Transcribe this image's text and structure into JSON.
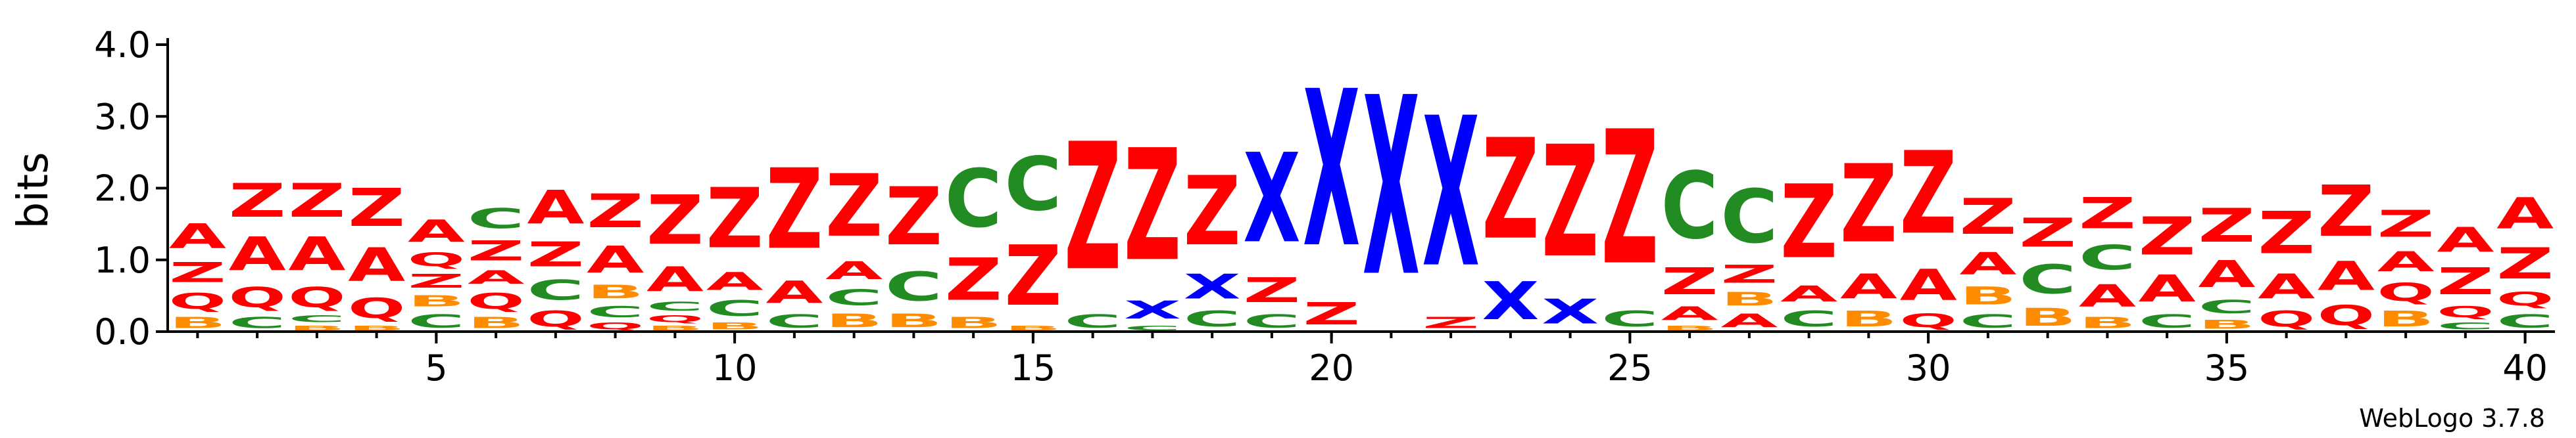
{
  "chart_data": {
    "type": "sequence-logo",
    "ylabel": "bits",
    "ylim": [
      0,
      4.0
    ],
    "yticks": [
      "0.0",
      "1.0",
      "2.0",
      "3.0",
      "4.0"
    ],
    "xlim": [
      1,
      40
    ],
    "xticks": [
      5,
      10,
      15,
      20,
      25,
      30,
      35,
      40
    ],
    "credit": "WebLogo 3.7.8",
    "colors": {
      "A": "#ff0000",
      "Z": "#ff0000",
      "Q": "#ff0000",
      "C": "#228b22",
      "B": "#ff8c00",
      "X": "#0000ff"
    },
    "positions": [
      {
        "pos": 1,
        "stack": [
          [
            "B",
            0.25
          ],
          [
            "Q",
            0.35
          ],
          [
            "Z",
            0.45
          ],
          [
            "A",
            0.55
          ]
        ]
      },
      {
        "pos": 2,
        "stack": [
          [
            "C",
            0.25
          ],
          [
            "Q",
            0.45
          ],
          [
            "A",
            0.75
          ],
          [
            "Z",
            0.75
          ]
        ]
      },
      {
        "pos": 3,
        "stack": [
          [
            "B",
            0.1
          ],
          [
            "C",
            0.15
          ],
          [
            "Q",
            0.45
          ],
          [
            "A",
            0.75
          ],
          [
            "Z",
            0.75
          ]
        ]
      },
      {
        "pos": 4,
        "stack": [
          [
            "B",
            0.1
          ],
          [
            "Q",
            0.45
          ],
          [
            "A",
            0.75
          ],
          [
            "Z",
            0.85
          ]
        ]
      },
      {
        "pos": 5,
        "stack": [
          [
            "C",
            0.3
          ],
          [
            "B",
            0.25
          ],
          [
            "Z",
            0.3
          ],
          [
            "Q",
            0.3
          ],
          [
            "A",
            0.5
          ]
        ]
      },
      {
        "pos": 6,
        "stack": [
          [
            "B",
            0.25
          ],
          [
            "Q",
            0.35
          ],
          [
            "A",
            0.3
          ],
          [
            "Z",
            0.45
          ],
          [
            "C",
            0.45
          ]
        ]
      },
      {
        "pos": 7,
        "stack": [
          [
            "Q",
            0.35
          ],
          [
            "C",
            0.45
          ],
          [
            "Z",
            0.55
          ],
          [
            "A",
            0.75
          ]
        ]
      },
      {
        "pos": 8,
        "stack": [
          [
            "Q",
            0.15
          ],
          [
            "C",
            0.25
          ],
          [
            "B",
            0.3
          ],
          [
            "A",
            0.6
          ],
          [
            "Z",
            0.75
          ]
        ]
      },
      {
        "pos": 9,
        "stack": [
          [
            "B",
            0.1
          ],
          [
            "Q",
            0.15
          ],
          [
            "C",
            0.2
          ],
          [
            "A",
            0.55
          ],
          [
            "Z",
            1.1
          ]
        ]
      },
      {
        "pos": 10,
        "stack": [
          [
            "B",
            0.15
          ],
          [
            "C",
            0.35
          ],
          [
            "A",
            0.4
          ],
          [
            "Z",
            1.35
          ]
        ]
      },
      {
        "pos": 11,
        "stack": [
          [
            "C",
            0.3
          ],
          [
            "A",
            0.5
          ],
          [
            "Z",
            1.8
          ]
        ]
      },
      {
        "pos": 12,
        "stack": [
          [
            "B",
            0.3
          ],
          [
            "C",
            0.35
          ],
          [
            "A",
            0.4
          ],
          [
            "Z",
            1.4
          ]
        ]
      },
      {
        "pos": 13,
        "stack": [
          [
            "B",
            0.3
          ],
          [
            "C",
            0.65
          ],
          [
            "Z",
            1.3
          ]
        ]
      },
      {
        "pos": 14,
        "stack": [
          [
            "B",
            0.25
          ],
          [
            "Z",
            0.95
          ],
          [
            "C",
            1.3
          ]
        ]
      },
      {
        "pos": 15,
        "stack": [
          [
            "B",
            0.1
          ],
          [
            "Z",
            1.35
          ],
          [
            "C",
            1.2
          ]
        ]
      },
      {
        "pos": 16,
        "stack": [
          [
            "C",
            0.3
          ],
          [
            "Z",
            2.85
          ]
        ]
      },
      {
        "pos": 17,
        "stack": [
          [
            "C",
            0.1
          ],
          [
            "X",
            0.4
          ],
          [
            "Z",
            2.5
          ]
        ]
      },
      {
        "pos": 18,
        "stack": [
          [
            "C",
            0.35
          ],
          [
            "X",
            0.55
          ],
          [
            "Z",
            1.55
          ]
        ]
      },
      {
        "pos": 19,
        "stack": [
          [
            "C",
            0.3
          ],
          [
            "Z",
            0.55
          ],
          [
            "X",
            2.0
          ]
        ]
      },
      {
        "pos": 20,
        "stack": [
          [
            "Z",
            0.5
          ],
          [
            "X",
            3.5
          ]
        ]
      },
      {
        "pos": 21,
        "stack": [
          [
            "X",
            4.0
          ]
        ]
      },
      {
        "pos": 22,
        "stack": [
          [
            "Z",
            0.25
          ],
          [
            "X",
            3.35
          ]
        ]
      },
      {
        "pos": 23,
        "stack": [
          [
            "X",
            0.85
          ],
          [
            "Z",
            2.25
          ]
        ]
      },
      {
        "pos": 24,
        "stack": [
          [
            "X",
            0.55
          ],
          [
            "Z",
            2.5
          ]
        ]
      },
      {
        "pos": 25,
        "stack": [
          [
            "C",
            0.35
          ],
          [
            "Z",
            3.0
          ]
        ]
      },
      {
        "pos": 26,
        "stack": [
          [
            "B",
            0.1
          ],
          [
            "A",
            0.3
          ],
          [
            "Z",
            0.6
          ],
          [
            "C",
            1.5
          ]
        ]
      },
      {
        "pos": 27,
        "stack": [
          [
            "A",
            0.3
          ],
          [
            "B",
            0.3
          ],
          [
            "Z",
            0.4
          ],
          [
            "C",
            1.2
          ]
        ]
      },
      {
        "pos": 28,
        "stack": [
          [
            "C",
            0.35
          ],
          [
            "A",
            0.35
          ],
          [
            "Z",
            1.65
          ]
        ]
      },
      {
        "pos": 29,
        "stack": [
          [
            "B",
            0.35
          ],
          [
            "A",
            0.55
          ],
          [
            "Z",
            1.75
          ]
        ]
      },
      {
        "pos": 30,
        "stack": [
          [
            "Q",
            0.3
          ],
          [
            "A",
            0.7
          ],
          [
            "Z",
            1.85
          ]
        ]
      },
      {
        "pos": 31,
        "stack": [
          [
            "C",
            0.3
          ],
          [
            "B",
            0.4
          ],
          [
            "A",
            0.5
          ],
          [
            "Z",
            0.8
          ]
        ]
      },
      {
        "pos": 32,
        "stack": [
          [
            "B",
            0.4
          ],
          [
            "C",
            0.65
          ],
          [
            "Z",
            0.65
          ]
        ]
      },
      {
        "pos": 33,
        "stack": [
          [
            "B",
            0.25
          ],
          [
            "A",
            0.5
          ],
          [
            "C",
            0.55
          ],
          [
            "Z",
            0.7
          ]
        ]
      },
      {
        "pos": 34,
        "stack": [
          [
            "C",
            0.3
          ],
          [
            "A",
            0.6
          ],
          [
            "Z",
            0.85
          ]
        ]
      },
      {
        "pos": 35,
        "stack": [
          [
            "B",
            0.2
          ],
          [
            "C",
            0.3
          ],
          [
            "A",
            0.6
          ],
          [
            "Z",
            0.75
          ]
        ]
      },
      {
        "pos": 36,
        "stack": [
          [
            "Q",
            0.35
          ],
          [
            "A",
            0.55
          ],
          [
            "Z",
            0.95
          ]
        ]
      },
      {
        "pos": 37,
        "stack": [
          [
            "Q",
            0.45
          ],
          [
            "A",
            0.65
          ],
          [
            "Z",
            1.15
          ]
        ]
      },
      {
        "pos": 38,
        "stack": [
          [
            "B",
            0.35
          ],
          [
            "Q",
            0.4
          ],
          [
            "A",
            0.45
          ],
          [
            "Z",
            0.6
          ]
        ]
      },
      {
        "pos": 39,
        "stack": [
          [
            "C",
            0.15
          ],
          [
            "Q",
            0.25
          ],
          [
            "Z",
            0.6
          ],
          [
            "A",
            0.55
          ]
        ]
      },
      {
        "pos": 40,
        "stack": [
          [
            "C",
            0.3
          ],
          [
            "Q",
            0.3
          ],
          [
            "Z",
            0.7
          ],
          [
            "A",
            0.7
          ]
        ]
      }
    ]
  }
}
